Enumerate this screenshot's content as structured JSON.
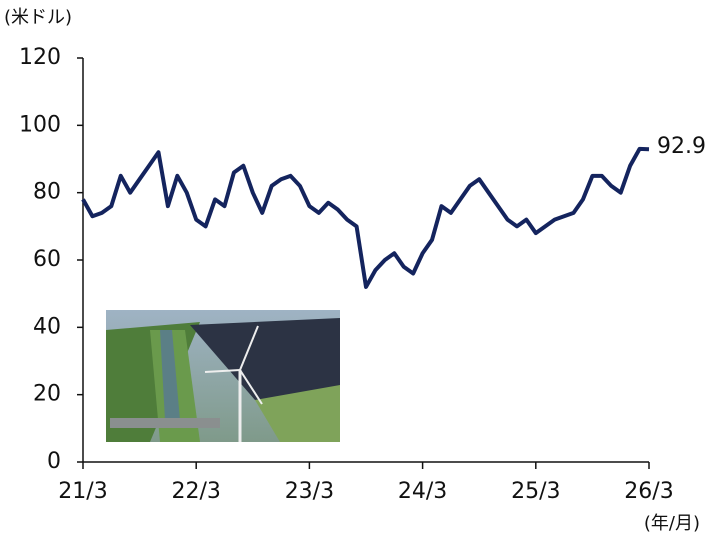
{
  "chart_data": {
    "type": "line",
    "y_label": "(米ドル)",
    "x_label": "(年/月)",
    "categories": [
      "21/3",
      null,
      null,
      null,
      null,
      null,
      null,
      null,
      null,
      null,
      null,
      null,
      "22/3",
      null,
      null,
      null,
      null,
      null,
      null,
      null,
      null,
      null,
      null,
      null,
      "23/3",
      null,
      null,
      null,
      null,
      null,
      null,
      null,
      null,
      null,
      null,
      null,
      "24/3",
      null,
      null,
      null,
      null,
      null,
      null,
      null,
      null,
      null,
      null,
      null,
      "25/3",
      null,
      null,
      null,
      null,
      null,
      null,
      null,
      null,
      null,
      null,
      null,
      "26/3"
    ],
    "series": [
      {
        "color": "#14245e",
        "values": [
          78,
          73,
          74,
          76,
          85,
          80,
          84,
          88,
          92,
          76,
          85,
          80,
          72,
          70,
          78,
          76,
          86,
          88,
          80,
          74,
          82,
          84,
          85,
          82,
          76,
          74,
          77,
          75,
          72,
          70,
          52,
          57,
          60,
          62,
          58,
          56,
          62,
          66,
          76,
          74,
          78,
          82,
          84,
          80,
          76,
          72,
          70,
          72,
          68,
          70,
          72,
          73,
          74,
          78,
          85,
          85,
          82,
          80,
          88,
          93,
          92.9
        ]
      }
    ],
    "ylim": [
      0,
      120
    ],
    "yticks": [
      0,
      20,
      40,
      60,
      80,
      100,
      120
    ],
    "grid": false
  }
}
